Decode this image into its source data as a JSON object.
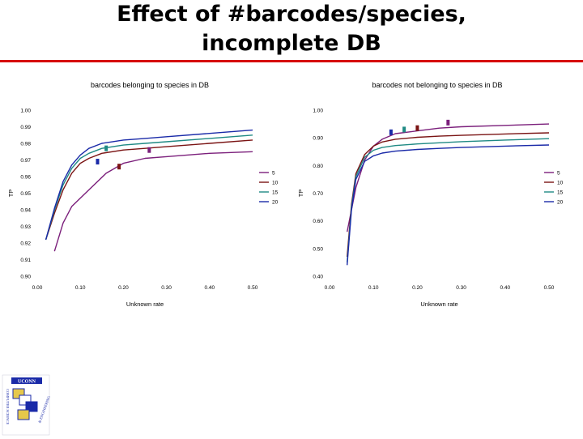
{
  "slide": {
    "title_line1": "Effect of  #barcodes/species,",
    "title_line2": "incomplete DB"
  },
  "colors": {
    "rule": "#d60000",
    "series_5": "#7b1f7b",
    "series_10": "#7a1414",
    "series_15": "#1f8a84",
    "series_20": "#1a2aa8"
  },
  "chart_data": [
    {
      "type": "line",
      "title": "barcodes belonging to species in DB",
      "xlabel": "Unknown rate",
      "ylabel": "TP",
      "xlim": [
        0.0,
        0.5
      ],
      "ylim": [
        0.9,
        1.0
      ],
      "x_ticks": [
        "0.00",
        "0.10",
        "0.20",
        "0.30",
        "0.40",
        "0.50"
      ],
      "y_ticks": [
        "0.90",
        "0.91",
        "0.92",
        "0.93",
        "0.94",
        "0.95",
        "0.96",
        "0.97",
        "0.98",
        "0.99",
        "1.00"
      ],
      "legend_position": "right",
      "series": [
        {
          "name": "5",
          "color": "#7b1f7b",
          "x": [
            0.04,
            0.06,
            0.08,
            0.12,
            0.16,
            0.2,
            0.25,
            0.3,
            0.4,
            0.5
          ],
          "y": [
            0.915,
            0.932,
            0.942,
            0.952,
            0.962,
            0.968,
            0.971,
            0.972,
            0.974,
            0.975
          ]
        },
        {
          "name": "10",
          "color": "#7a1414",
          "x": [
            0.02,
            0.04,
            0.06,
            0.08,
            0.1,
            0.12,
            0.15,
            0.2,
            0.25,
            0.3,
            0.4,
            0.5
          ],
          "y": [
            0.922,
            0.938,
            0.952,
            0.962,
            0.968,
            0.971,
            0.974,
            0.976,
            0.977,
            0.978,
            0.98,
            0.982
          ]
        },
        {
          "name": "15",
          "color": "#1f8a84",
          "x": [
            0.02,
            0.04,
            0.06,
            0.08,
            0.1,
            0.12,
            0.15,
            0.2,
            0.25,
            0.3,
            0.4,
            0.5
          ],
          "y": [
            0.922,
            0.94,
            0.955,
            0.965,
            0.971,
            0.974,
            0.977,
            0.979,
            0.98,
            0.981,
            0.983,
            0.985
          ]
        },
        {
          "name": "20",
          "color": "#1a2aa8",
          "x": [
            0.02,
            0.04,
            0.06,
            0.08,
            0.1,
            0.12,
            0.15,
            0.2,
            0.25,
            0.3,
            0.4,
            0.5
          ],
          "y": [
            0.922,
            0.941,
            0.957,
            0.967,
            0.973,
            0.977,
            0.98,
            0.982,
            0.983,
            0.984,
            0.986,
            0.988
          ]
        }
      ],
      "markers": [
        {
          "series": "20",
          "x": 0.14,
          "y": 0.969
        },
        {
          "series": "15",
          "x": 0.16,
          "y": 0.977
        },
        {
          "series": "10",
          "x": 0.19,
          "y": 0.966
        },
        {
          "series": "5",
          "x": 0.26,
          "y": 0.976
        }
      ]
    },
    {
      "type": "line",
      "title": "barcodes not belonging to species in DB",
      "xlabel": "Unknown rate",
      "ylabel": "TP",
      "xlim": [
        0.0,
        0.5
      ],
      "ylim": [
        0.4,
        1.0
      ],
      "x_ticks": [
        "0.00",
        "0.10",
        "0.20",
        "0.30",
        "0.40",
        "0.50"
      ],
      "y_ticks": [
        "0.40",
        "0.50",
        "0.60",
        "0.70",
        "0.80",
        "0.90",
        "1.00"
      ],
      "legend_position": "right",
      "series": [
        {
          "name": "5",
          "color": "#7b1f7b",
          "x": [
            0.04,
            0.06,
            0.08,
            0.1,
            0.12,
            0.15,
            0.2,
            0.25,
            0.3,
            0.4,
            0.5
          ],
          "y": [
            0.56,
            0.72,
            0.82,
            0.87,
            0.895,
            0.915,
            0.925,
            0.935,
            0.94,
            0.945,
            0.95
          ]
        },
        {
          "name": "10",
          "color": "#7a1414",
          "x": [
            0.04,
            0.05,
            0.06,
            0.08,
            0.1,
            0.12,
            0.15,
            0.2,
            0.25,
            0.3,
            0.4,
            0.5
          ],
          "y": [
            0.47,
            0.66,
            0.77,
            0.84,
            0.87,
            0.885,
            0.895,
            0.902,
            0.906,
            0.909,
            0.914,
            0.918
          ]
        },
        {
          "name": "15",
          "color": "#1f8a84",
          "x": [
            0.04,
            0.05,
            0.06,
            0.08,
            0.1,
            0.12,
            0.15,
            0.2,
            0.25,
            0.3,
            0.4,
            0.5
          ],
          "y": [
            0.45,
            0.65,
            0.76,
            0.83,
            0.855,
            0.865,
            0.872,
            0.878,
            0.882,
            0.886,
            0.892,
            0.897
          ]
        },
        {
          "name": "20",
          "color": "#1a2aa8",
          "x": [
            0.04,
            0.05,
            0.06,
            0.08,
            0.1,
            0.12,
            0.15,
            0.2,
            0.25,
            0.3,
            0.4,
            0.5
          ],
          "y": [
            0.44,
            0.64,
            0.75,
            0.815,
            0.835,
            0.845,
            0.852,
            0.858,
            0.862,
            0.865,
            0.87,
            0.874
          ]
        }
      ],
      "markers": [
        {
          "series": "20",
          "x": 0.14,
          "y": 0.92
        },
        {
          "series": "15",
          "x": 0.17,
          "y": 0.93
        },
        {
          "series": "10",
          "x": 0.2,
          "y": 0.935
        },
        {
          "series": "5",
          "x": 0.27,
          "y": 0.955
        }
      ]
    }
  ],
  "logo": {
    "label_top": "UCONN",
    "arc_left": "COMPUTER SCIENCE",
    "arc_right": "& ENGINEERING"
  }
}
